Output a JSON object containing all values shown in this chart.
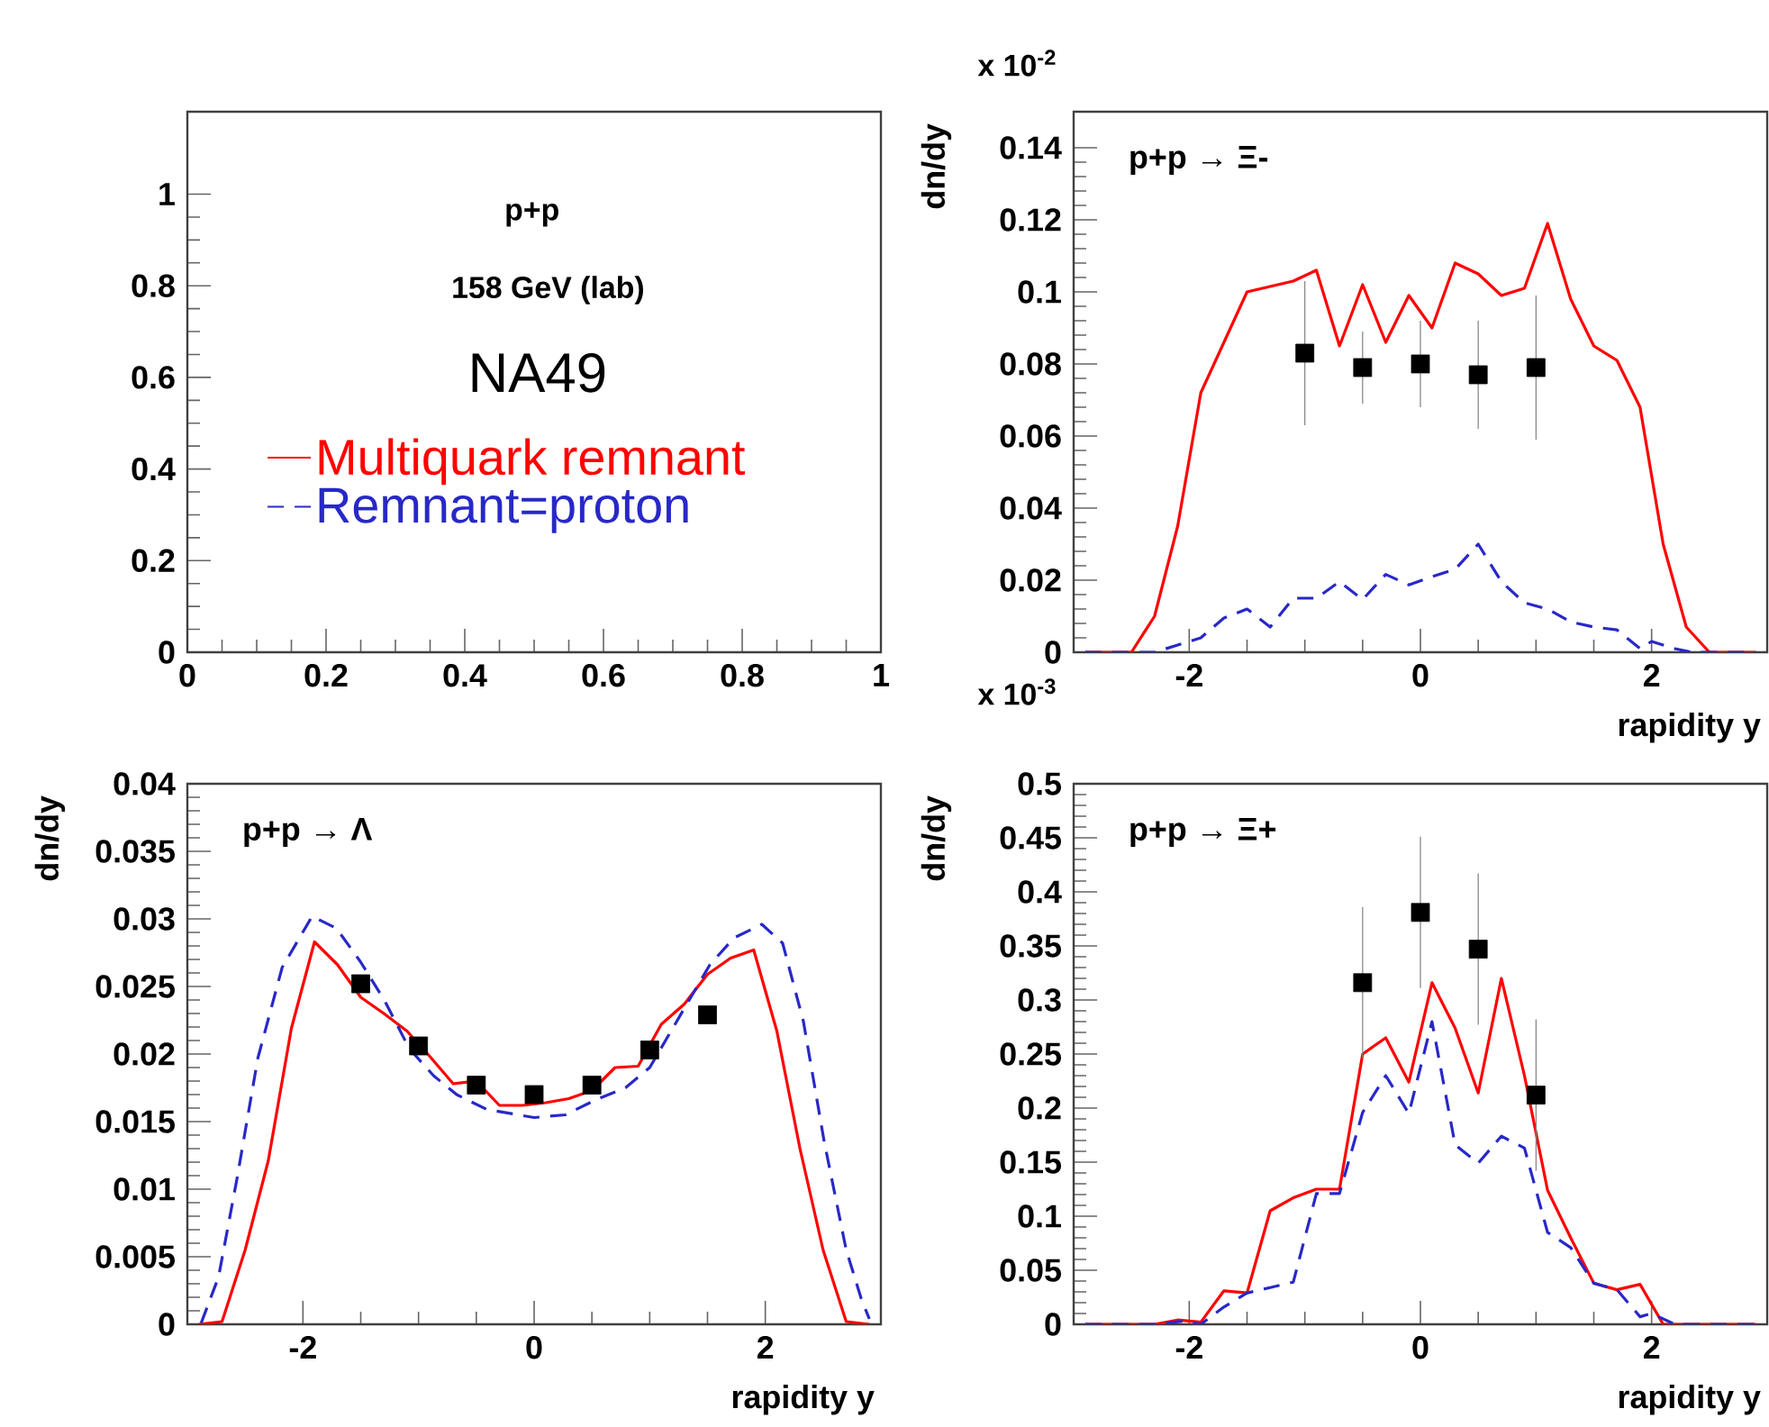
{
  "chart_data": [
    {
      "type": "line",
      "xlim": [
        0,
        1
      ],
      "ylim": [
        0,
        1.18
      ],
      "xticks": [
        0,
        0.2,
        0.4,
        0.6,
        0.8,
        1
      ],
      "yticks": [
        0,
        0.2,
        0.4,
        0.6,
        0.8,
        1
      ],
      "annotations": [
        "p+p",
        "158 GeV (lab)",
        "NA49"
      ]
    },
    {
      "type": "line",
      "title": "p+p  → Ξ-",
      "xlabel": "rapidity y",
      "ylabel": "dn/dy",
      "annotations": [
        "x 10$^{-2}$"
      ],
      "xlim": [
        -3,
        3
      ],
      "ylim": [
        0,
        0.15
      ],
      "xticks": [
        -2,
        0,
        2
      ],
      "yticks": [
        0,
        0.02,
        0.04,
        0.06,
        0.08,
        0.1,
        0.12,
        0.14
      ],
      "legend": "left",
      "series": [
        {
          "name": "Multiquark remnant",
          "type": "line",
          "color": "#ff0000",
          "x": [
            -2.9,
            -2.5,
            -2.3,
            -2.1,
            -1.9,
            -1.7,
            -1.5,
            -1.1,
            -0.9,
            -0.7,
            -0.5,
            -0.3,
            -0.1,
            0.1,
            0.3,
            0.5,
            0.7,
            0.9,
            1.1,
            1.3,
            1.5,
            1.7,
            1.9,
            2.1,
            2.3,
            2.5,
            2.9
          ],
          "values": [
            0,
            0,
            0.01,
            0.035,
            0.072,
            0.086,
            0.1,
            0.103,
            0.106,
            0.085,
            0.102,
            0.086,
            0.099,
            0.09,
            0.108,
            0.105,
            0.099,
            0.101,
            0.119,
            0.098,
            0.085,
            0.081,
            0.068,
            0.03,
            0.007,
            0,
            0
          ]
        },
        {
          "name": "Remnant=proton",
          "type": "line",
          "line_style": "dashed",
          "color": "#2828c8",
          "x": [
            -2.9,
            -2.3,
            -2.1,
            -1.9,
            -1.7,
            -1.5,
            -1.3,
            -1.1,
            -0.9,
            -0.7,
            -0.5,
            -0.3,
            -0.1,
            0.1,
            0.3,
            0.5,
            0.7,
            0.9,
            1.1,
            1.3,
            1.5,
            1.7,
            1.9,
            2.0,
            2.2,
            2.35,
            2.9
          ],
          "values": [
            0,
            0,
            0.002,
            0.004,
            0.0095,
            0.012,
            0.007,
            0.015,
            0.015,
            0.0196,
            0.0146,
            0.0216,
            0.0187,
            0.021,
            0.023,
            0.03,
            0.0196,
            0.0137,
            0.012,
            0.0084,
            0.007,
            0.0062,
            0.001,
            0.003,
            0.001,
            0,
            0
          ]
        },
        {
          "type": "scatter",
          "marker": "square",
          "color": "#000000",
          "x": [
            -1,
            -0.5,
            0,
            0.5,
            1
          ],
          "values": [
            0.083,
            0.079,
            0.08,
            0.077,
            0.079
          ],
          "errors": [
            0.02,
            0.01,
            0.012,
            0.015,
            0.02
          ]
        }
      ]
    },
    {
      "type": "line",
      "title": "p+p  → Λ",
      "xlabel": "rapidity y",
      "ylabel": "dn/dy",
      "xlim": [
        -3,
        3
      ],
      "ylim": [
        0,
        0.04
      ],
      "xticks": [
        -2,
        0,
        2
      ],
      "yticks": [
        0,
        0.005,
        0.01,
        0.015,
        0.02,
        0.025,
        0.03,
        0.035,
        0.04
      ],
      "series": [
        {
          "type": "line",
          "color": "#ff0000",
          "x": [
            -2.9,
            -2.7,
            -2.5,
            -2.3,
            -2.1,
            -1.9,
            -1.7,
            -1.5,
            -1.3,
            -1.1,
            -0.9,
            -0.7,
            -0.5,
            -0.3,
            -0.1,
            0.1,
            0.3,
            0.5,
            0.7,
            0.9,
            1.1,
            1.3,
            1.5,
            1.7,
            1.9,
            2.1,
            2.3,
            2.5,
            2.7,
            2.9
          ],
          "values": [
            0,
            0.0002,
            0.0055,
            0.0121,
            0.0219,
            0.0283,
            0.0266,
            0.0242,
            0.023,
            0.0217,
            0.0198,
            0.0178,
            0.018,
            0.0162,
            0.0162,
            0.0164,
            0.0167,
            0.0173,
            0.019,
            0.0191,
            0.0222,
            0.0237,
            0.0259,
            0.0271,
            0.0277,
            0.0217,
            0.013,
            0.0055,
            0.0002,
            0
          ]
        },
        {
          "type": "line",
          "line_style": "dashed",
          "color": "#2828c8",
          "x": [
            -2.88,
            -2.73,
            -2.57,
            -2.39,
            -2.18,
            -1.92,
            -1.71,
            -1.5,
            -1.29,
            -1.08,
            -0.87,
            -0.67,
            -0.41,
            0,
            0.27,
            0.53,
            0.79,
            1.0,
            1.26,
            1.52,
            1.73,
            1.97,
            2.15,
            2.33,
            2.51,
            2.7,
            2.83,
            2.9
          ],
          "values": [
            0.0001,
            0.0035,
            0.0108,
            0.0197,
            0.0264,
            0.0302,
            0.0293,
            0.0268,
            0.0239,
            0.0204,
            0.0184,
            0.017,
            0.0159,
            0.0153,
            0.0155,
            0.0166,
            0.0175,
            0.019,
            0.0228,
            0.0266,
            0.0286,
            0.0296,
            0.0282,
            0.0224,
            0.0135,
            0.0055,
            0.0019,
            0.0004
          ]
        },
        {
          "type": "scatter",
          "marker": "square",
          "color": "#000000",
          "x": [
            -1.5,
            -1,
            -0.5,
            0,
            0.5,
            1,
            1.5
          ],
          "values": [
            0.0252,
            0.0206,
            0.0177,
            0.017,
            0.0177,
            0.0203,
            0.0229
          ]
        }
      ]
    },
    {
      "type": "line",
      "title": "p+p  → Ξ+",
      "xlabel": "rapidity y",
      "ylabel": "dn/dy",
      "annotations": [
        "x 10$^{-3}$"
      ],
      "xlim": [
        -3,
        3
      ],
      "ylim": [
        0,
        0.5
      ],
      "xticks": [
        -2,
        0,
        2
      ],
      "yticks": [
        0,
        0.05,
        0.1,
        0.15,
        0.2,
        0.25,
        0.3,
        0.35,
        0.4,
        0.45,
        0.5
      ],
      "series": [
        {
          "type": "line",
          "color": "#ff0000",
          "x": [
            -2.9,
            -2.3,
            -2.1,
            -1.9,
            -1.7,
            -1.5,
            -1.3,
            -1.1,
            -0.9,
            -0.7,
            -0.5,
            -0.3,
            -0.1,
            0.1,
            0.3,
            0.5,
            0.7,
            0.9,
            1.1,
            1.3,
            1.5,
            1.7,
            1.9,
            2.1,
            2.9
          ],
          "values": [
            0,
            0,
            0.004,
            0.002,
            0.031,
            0.029,
            0.105,
            0.117,
            0.125,
            0.125,
            0.25,
            0.265,
            0.224,
            0.316,
            0.274,
            0.214,
            0.32,
            0.23,
            0.124,
            0.08,
            0.038,
            0.032,
            0.037,
            0,
            0
          ]
        },
        {
          "type": "line",
          "line_style": "dashed",
          "color": "#2828c8",
          "x": [
            -2.9,
            -2.3,
            -2.05,
            -1.9,
            -1.7,
            -1.5,
            -1.3,
            -1.1,
            -0.9,
            -0.7,
            -0.5,
            -0.3,
            -0.1,
            0.1,
            0.3,
            0.5,
            0.7,
            0.9,
            1.1,
            1.3,
            1.5,
            1.7,
            1.9,
            2.0,
            2.2,
            2.9
          ],
          "values": [
            0,
            0,
            0.003,
            0,
            0.016,
            0.029,
            0.034,
            0.039,
            0.121,
            0.121,
            0.196,
            0.23,
            0.195,
            0.28,
            0.166,
            0.149,
            0.174,
            0.163,
            0.085,
            0.071,
            0.038,
            0.032,
            0.007,
            0.01,
            0,
            0
          ]
        },
        {
          "type": "scatter",
          "marker": "square",
          "color": "#000000",
          "x": [
            -0.5,
            0,
            0.5,
            1
          ],
          "values": [
            0.316,
            0.381,
            0.347,
            0.212
          ],
          "errors": [
            0.07,
            0.07,
            0.07,
            0.07
          ]
        }
      ]
    }
  ]
}
